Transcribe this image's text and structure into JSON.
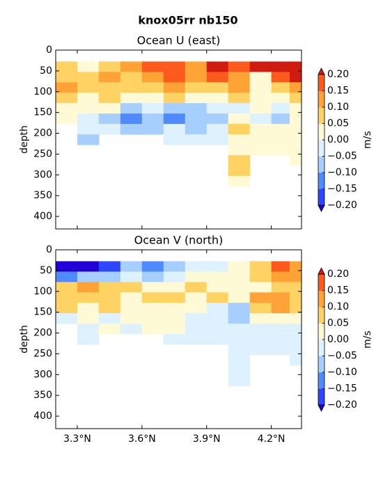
{
  "title": "knox05rr nb150",
  "chart_data": [
    {
      "type": "contour",
      "title": "Ocean U (east)",
      "ylabel": "depth",
      "colorbar_label": "m/s",
      "x": [
        3.25,
        3.35,
        3.45,
        3.55,
        3.65,
        3.75,
        3.85,
        3.95,
        4.05,
        4.15,
        4.25,
        4.32
      ],
      "y": [
        40,
        65,
        90,
        115,
        140,
        165,
        190,
        215,
        240,
        265,
        290,
        315
      ],
      "z": [
        [
          0.07,
          0.02,
          0.07,
          0.12,
          0.17,
          0.17,
          0.12,
          0.22,
          0.17,
          0.22,
          0.22,
          0.22
        ],
        [
          0.07,
          0.07,
          0.12,
          0.07,
          0.12,
          0.17,
          0.12,
          0.17,
          0.12,
          0.02,
          0.17,
          0.22
        ],
        [
          0.12,
          0.07,
          0.07,
          0.07,
          0.07,
          0.12,
          0.07,
          0.07,
          0.12,
          0.02,
          0.07,
          0.12
        ],
        [
          0.07,
          0.02,
          0.07,
          0.02,
          0.02,
          0.07,
          0.02,
          0.02,
          0.07,
          0.02,
          0.02,
          0.07
        ],
        [
          0.02,
          0.02,
          0.02,
          -0.07,
          -0.02,
          -0.07,
          -0.07,
          -0.02,
          -0.02,
          0.02,
          -0.02,
          0.02
        ],
        [
          0.02,
          -0.02,
          -0.07,
          -0.12,
          -0.07,
          -0.12,
          -0.07,
          -0.07,
          0.02,
          -0.02,
          -0.07,
          0.02
        ],
        [
          null,
          -0.02,
          -0.02,
          -0.07,
          -0.07,
          -0.02,
          -0.07,
          -0.02,
          0.07,
          0.02,
          0.02,
          0.02
        ],
        [
          null,
          -0.07,
          null,
          null,
          null,
          -0.02,
          -0.02,
          -0.02,
          0.02,
          0.02,
          0.02,
          0.02
        ],
        [
          null,
          null,
          null,
          null,
          null,
          null,
          null,
          null,
          0.02,
          0.02,
          0.02,
          0.02
        ],
        [
          null,
          null,
          null,
          null,
          null,
          null,
          null,
          null,
          0.07,
          null,
          null,
          0.02
        ],
        [
          null,
          null,
          null,
          null,
          null,
          null,
          null,
          null,
          0.07,
          null,
          null,
          null
        ],
        [
          null,
          null,
          null,
          null,
          null,
          null,
          null,
          null,
          0.02,
          null,
          null,
          null
        ]
      ],
      "levels": [
        -0.2,
        -0.15,
        -0.1,
        -0.05,
        0,
        0.05,
        0.1,
        0.15,
        0.2
      ],
      "colors": [
        "#2400d8",
        "#2d46ff",
        "#4f8bff",
        "#a6cfff",
        "#def1ff",
        "#fffad6",
        "#ffd264",
        "#ffa336",
        "#ff5a1e",
        "#d01c10"
      ],
      "xlim": [
        3.2,
        4.34
      ],
      "ylim": [
        430,
        0
      ],
      "xticks": [
        3.3,
        3.6,
        3.9,
        4.2
      ],
      "yticks": [
        0,
        50,
        100,
        150,
        200,
        250,
        300,
        350,
        400
      ],
      "colorbar_ticks": [
        {
          "value": -0.2,
          "label": "−0.20"
        },
        {
          "value": -0.15,
          "label": "−0.15"
        },
        {
          "value": -0.1,
          "label": "−0.10"
        },
        {
          "value": -0.05,
          "label": "−0.05"
        },
        {
          "value": 0,
          "label": "0.00"
        },
        {
          "value": 0.05,
          "label": "0.05"
        },
        {
          "value": 0.1,
          "label": "0.10"
        },
        {
          "value": 0.15,
          "label": "0.15"
        },
        {
          "value": 0.2,
          "label": "0.20"
        }
      ]
    },
    {
      "type": "contour",
      "title": "Ocean V (north)",
      "ylabel": "depth",
      "colorbar_label": "m/s",
      "x": [
        3.25,
        3.35,
        3.45,
        3.55,
        3.65,
        3.75,
        3.85,
        3.95,
        4.05,
        4.15,
        4.25,
        4.32
      ],
      "y": [
        40,
        65,
        90,
        115,
        140,
        165,
        190,
        215,
        240,
        265,
        290,
        315
      ],
      "z": [
        [
          -0.22,
          -0.22,
          -0.17,
          -0.07,
          -0.12,
          -0.07,
          -0.02,
          -0.02,
          0.02,
          0.07,
          0.17,
          0.12
        ],
        [
          -0.12,
          -0.07,
          -0.07,
          -0.02,
          -0.07,
          -0.02,
          0.02,
          0.02,
          0.02,
          0.07,
          0.12,
          0.12
        ],
        [
          0.07,
          0.12,
          0.07,
          0.07,
          0.02,
          0.02,
          0.07,
          0.02,
          0.02,
          0.02,
          0.07,
          0.07
        ],
        [
          0.07,
          0.07,
          0.07,
          0.02,
          0.07,
          0.07,
          0.02,
          0.07,
          0.02,
          0.12,
          0.12,
          0.07
        ],
        [
          0.07,
          0.02,
          0.07,
          0.02,
          0.02,
          0.02,
          0.02,
          -0.02,
          -0.07,
          0.07,
          0.12,
          0.07
        ],
        [
          -0.02,
          0.02,
          -0.02,
          0.02,
          0.02,
          0.02,
          -0.02,
          -0.02,
          -0.07,
          0.02,
          0.02,
          0.02
        ],
        [
          null,
          -0.02,
          0.02,
          -0.02,
          0.02,
          0.02,
          -0.02,
          -0.02,
          -0.02,
          -0.02,
          -0.02,
          -0.02
        ],
        [
          null,
          -0.02,
          null,
          null,
          null,
          -0.02,
          -0.02,
          -0.02,
          -0.02,
          -0.02,
          -0.02,
          -0.02
        ],
        [
          null,
          null,
          null,
          null,
          null,
          null,
          null,
          null,
          -0.02,
          -0.02,
          -0.02,
          -0.02
        ],
        [
          null,
          null,
          null,
          null,
          null,
          null,
          null,
          null,
          -0.02,
          null,
          null,
          -0.02
        ],
        [
          null,
          null,
          null,
          null,
          null,
          null,
          null,
          null,
          -0.02,
          null,
          null,
          null
        ],
        [
          null,
          null,
          null,
          null,
          null,
          null,
          null,
          null,
          -0.02,
          null,
          null,
          null
        ]
      ],
      "levels": [
        -0.2,
        -0.15,
        -0.1,
        -0.05,
        0,
        0.05,
        0.1,
        0.15,
        0.2
      ],
      "colors": [
        "#2400d8",
        "#2d46ff",
        "#4f8bff",
        "#a6cfff",
        "#def1ff",
        "#fffad6",
        "#ffd264",
        "#ffa336",
        "#ff5a1e",
        "#d01c10"
      ],
      "xlim": [
        3.2,
        4.34
      ],
      "ylim": [
        430,
        0
      ],
      "xticks": [
        {
          "value": 3.3,
          "label": "3.3°N"
        },
        {
          "value": 3.6,
          "label": "3.6°N"
        },
        {
          "value": 3.9,
          "label": "3.9°N"
        },
        {
          "value": 4.2,
          "label": "4.2°N"
        }
      ],
      "yticks": [
        0,
        50,
        100,
        150,
        200,
        250,
        300,
        350,
        400
      ],
      "colorbar_ticks": [
        {
          "value": -0.2,
          "label": "−0.20"
        },
        {
          "value": -0.15,
          "label": "−0.15"
        },
        {
          "value": -0.1,
          "label": "−0.10"
        },
        {
          "value": -0.05,
          "label": "−0.05"
        },
        {
          "value": 0,
          "label": "0.00"
        },
        {
          "value": 0.05,
          "label": "0.05"
        },
        {
          "value": 0.1,
          "label": "0.10"
        },
        {
          "value": 0.15,
          "label": "0.15"
        },
        {
          "value": 0.2,
          "label": "0.20"
        }
      ]
    }
  ]
}
